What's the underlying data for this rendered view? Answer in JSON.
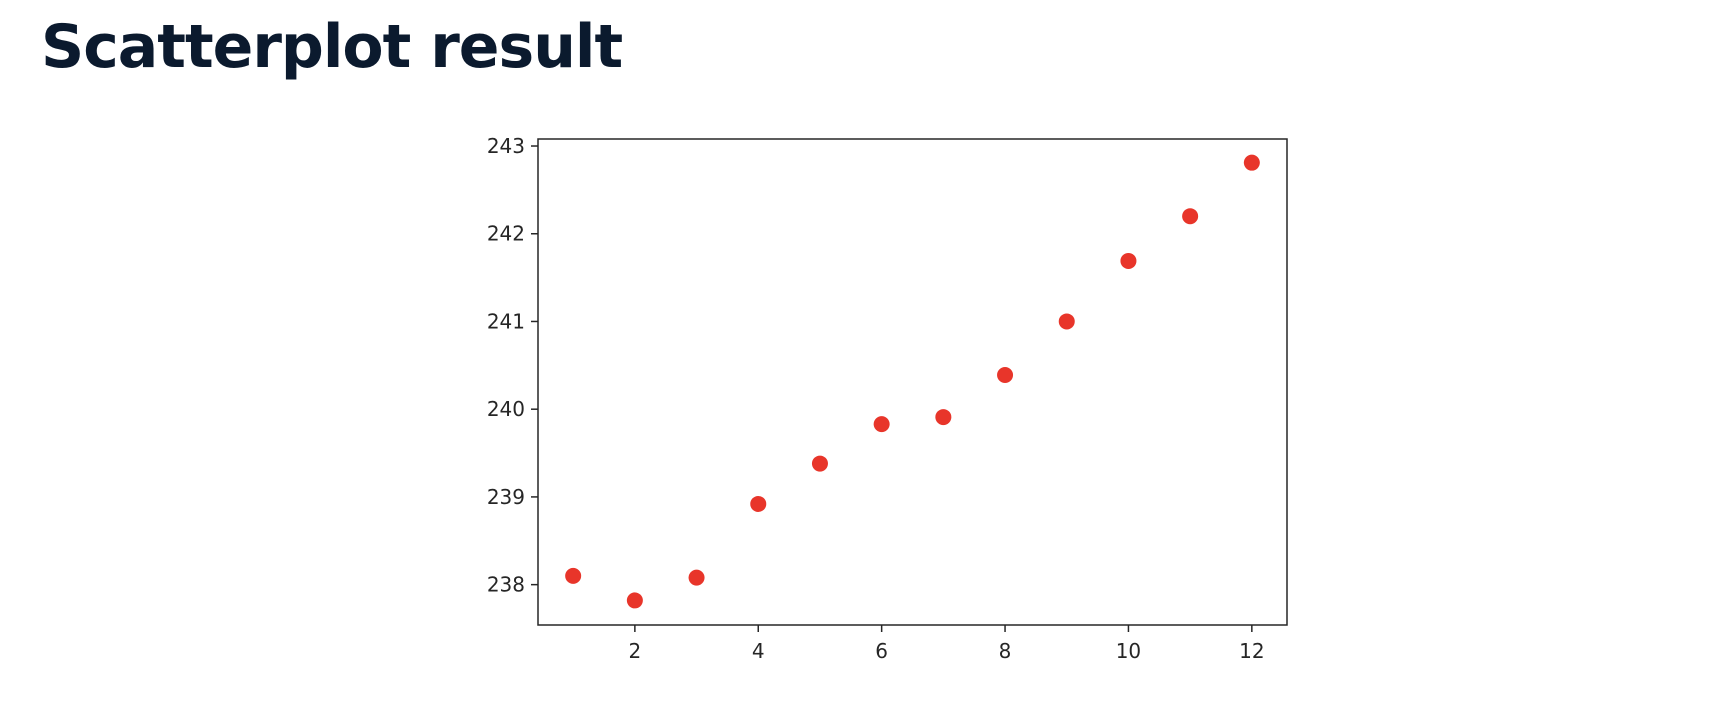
{
  "slide": {
    "title": "Scatterplot result"
  },
  "chart_data": {
    "type": "scatter",
    "title": "",
    "xlabel": "",
    "ylabel": "",
    "x": [
      1,
      2,
      3,
      4,
      5,
      6,
      7,
      8,
      9,
      10,
      11,
      12
    ],
    "y": [
      238.1,
      237.82,
      238.08,
      238.92,
      239.38,
      239.83,
      239.91,
      240.39,
      241.0,
      241.69,
      242.2,
      242.81
    ],
    "xlim": [
      0.43,
      12.57
    ],
    "ylim": [
      237.54,
      243.08
    ],
    "xticks": [
      2,
      4,
      6,
      8,
      10,
      12
    ],
    "yticks": [
      238,
      239,
      240,
      241,
      242,
      243
    ],
    "grid": false,
    "legend": false,
    "marker_color": "#e8352a",
    "axis_color": "#262626"
  }
}
